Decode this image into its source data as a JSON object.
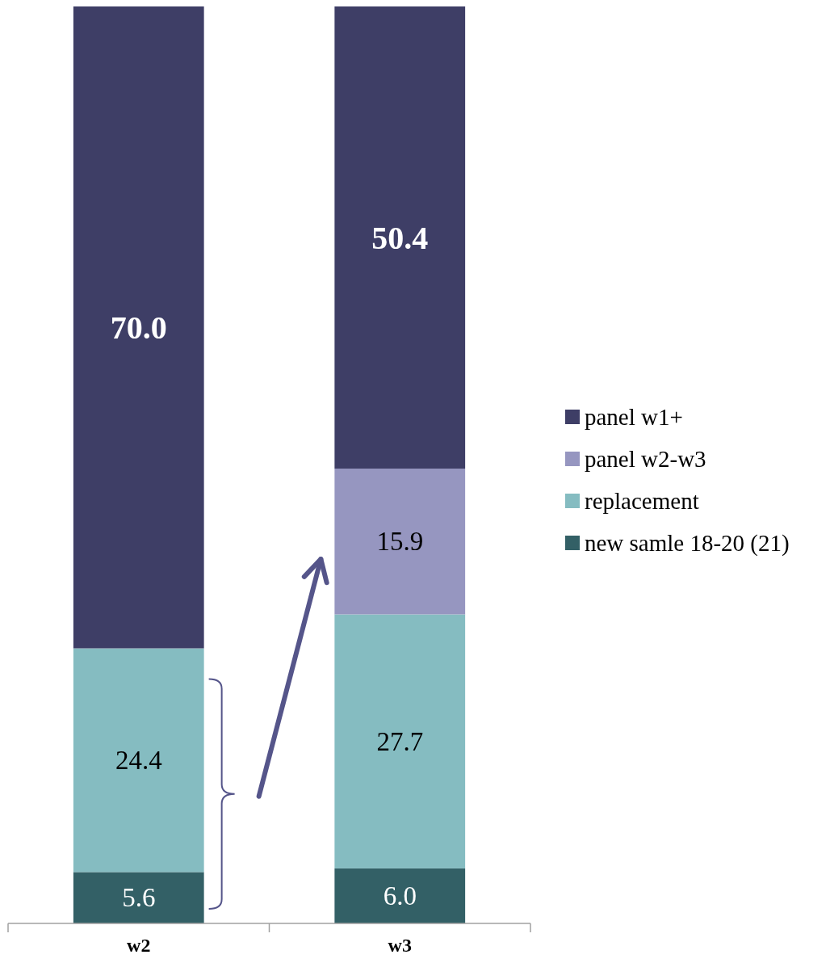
{
  "chart_data": {
    "type": "bar",
    "stacked": true,
    "categories": [
      "w2",
      "w3"
    ],
    "legend": "right",
    "series": [
      {
        "name": "new samle 18-20 (21)",
        "color": "#336066",
        "values": [
          5.6,
          6.0
        ],
        "value_labels": [
          "5.6",
          "6.0"
        ]
      },
      {
        "name": "replacement",
        "color": "#85bcc1",
        "values": [
          24.4,
          27.7
        ],
        "value_labels": [
          "24.4",
          "27.7"
        ]
      },
      {
        "name": "panel w2-w3",
        "color": "#9696c0",
        "values": [
          null,
          15.9
        ],
        "value_labels": [
          null,
          "15.9"
        ]
      },
      {
        "name": "panel w1+",
        "color": "#3e3e66",
        "values": [
          70.0,
          50.4
        ],
        "value_labels": [
          "70.0",
          "50.4"
        ]
      }
    ]
  }
}
